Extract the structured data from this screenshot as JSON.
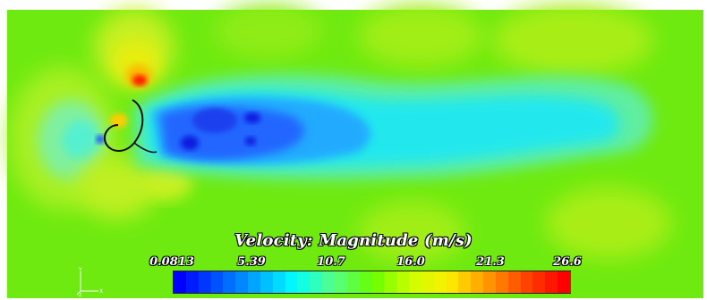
{
  "legend": {
    "title": "Velocity: Magnitude (m/s)",
    "ticks": [
      "0.0813",
      "5.39",
      "10.7",
      "16.0",
      "21.3",
      "26.6"
    ],
    "min": 0.0813,
    "max": 26.6,
    "colors": [
      "#0000ff",
      "#0055ff",
      "#00aaff",
      "#00ffff",
      "#55ff88",
      "#66ff00",
      "#ccff00",
      "#ffee00",
      "#ff9900",
      "#ff4400",
      "#ff0000"
    ]
  },
  "orientation": {
    "y_label": "Y",
    "x_label": "X",
    "z_label": "Z"
  },
  "colors": {
    "background_field": "#6eea10",
    "wake_low": "#2255ff",
    "wake_mid": "#22ddee",
    "high_speed": "#ff1a00"
  }
}
